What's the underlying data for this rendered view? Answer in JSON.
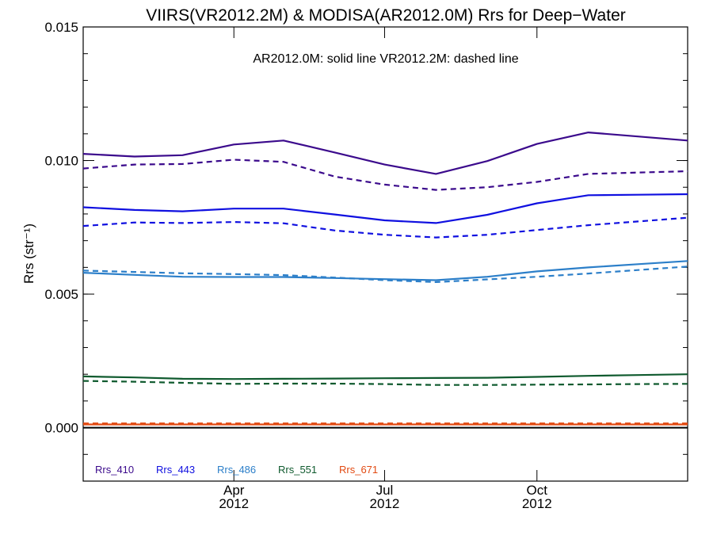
{
  "chart_data": {
    "type": "line",
    "title": "VIIRS(VR2012.2M) & MODISA(AR2012.0M)  Rrs for Deep−Water",
    "annotation": "AR2012.0M: solid line   VR2012.2M: dashed line",
    "ylabel": "Rrs (str⁻¹)",
    "ylim": [
      -0.002,
      0.015
    ],
    "xlim": [
      "2012-01-01",
      "2012-12-31"
    ],
    "yticks": [
      0.0,
      0.005,
      0.01,
      0.015
    ],
    "ytick_labels": [
      "0.000",
      "0.005",
      "0.010",
      "0.015"
    ],
    "xticks": [
      "2012-04-01",
      "2012-07-01",
      "2012-10-01"
    ],
    "xtick_labels": [
      [
        "Apr",
        "2012"
      ],
      [
        "Jul",
        "2012"
      ],
      [
        "Oct",
        "2012"
      ]
    ],
    "grid": false,
    "legend_position": "bottom-left",
    "x": [
      "2012-01-01",
      "2012-02-01",
      "2012-03-01",
      "2012-04-01",
      "2012-05-01",
      "2012-06-01",
      "2012-07-01",
      "2012-08-01",
      "2012-09-01",
      "2012-10-01",
      "2012-11-01",
      "2012-12-01",
      "2012-12-31"
    ],
    "series": [
      {
        "name": "Rrs_410",
        "color": "#3b0a8c",
        "style": "solid",
        "values": [
          0.01025,
          0.01015,
          0.0102,
          0.0106,
          0.01075,
          0.0103,
          0.00985,
          0.0095,
          0.00998,
          0.01062,
          0.01105,
          0.0109,
          null
        ]
      },
      {
        "name": "Rrs_410",
        "color": "#3b0a8c",
        "style": "dashed",
        "values": [
          0.0097,
          0.00985,
          0.00987,
          0.01003,
          0.00995,
          0.0094,
          0.0091,
          0.0089,
          0.009,
          0.0092,
          0.0095,
          0.00955,
          null
        ]
      },
      {
        "name": "Rrs_443",
        "color": "#1010e0",
        "style": "solid",
        "values": [
          0.00825,
          0.00815,
          0.0081,
          0.0082,
          0.0082,
          0.00798,
          0.00776,
          0.00766,
          0.00797,
          0.0084,
          0.0087,
          0.00872,
          null
        ]
      },
      {
        "name": "Rrs_443",
        "color": "#1010e0",
        "style": "dashed",
        "values": [
          0.00755,
          0.00768,
          0.00766,
          0.0077,
          0.00765,
          0.00738,
          0.00722,
          0.00712,
          0.00722,
          0.0074,
          0.00758,
          0.00772,
          null
        ]
      },
      {
        "name": "Rrs_486",
        "color": "#2c7fc9",
        "style": "solid",
        "values": [
          0.0058,
          0.00572,
          0.00565,
          0.00564,
          0.00564,
          0.0056,
          0.00556,
          0.00552,
          0.00565,
          0.00585,
          0.006,
          0.00612,
          null
        ]
      },
      {
        "name": "Rrs_486",
        "color": "#2c7fc9",
        "style": "dashed",
        "values": [
          0.00588,
          0.00583,
          0.00578,
          0.00575,
          0.00571,
          0.00562,
          0.00552,
          0.00545,
          0.00555,
          0.00565,
          0.00577,
          0.0059,
          null
        ]
      },
      {
        "name": "Rrs_551",
        "color": "#0f5a2e",
        "style": "solid",
        "values": [
          0.00192,
          0.00188,
          0.00183,
          0.00182,
          0.00183,
          0.00184,
          0.00185,
          0.00186,
          0.00187,
          0.0019,
          0.00194,
          0.00197,
          null
        ]
      },
      {
        "name": "Rrs_551",
        "color": "#0f5a2e",
        "style": "dashed",
        "values": [
          0.00175,
          0.00172,
          0.00168,
          0.00164,
          0.00165,
          0.00165,
          0.00163,
          0.0016,
          0.0016,
          0.00161,
          0.00162,
          0.00163,
          null
        ]
      },
      {
        "name": "Rrs_671",
        "color": "#e24a12",
        "style": "solid",
        "values": [
          0.00012,
          0.00012,
          0.00012,
          0.00012,
          0.00012,
          0.00012,
          0.00012,
          0.00012,
          0.00012,
          0.00012,
          0.00012,
          0.00012,
          null
        ]
      },
      {
        "name": "Rrs_671",
        "color": "#e24a12",
        "style": "dashed",
        "values": [
          0.00016,
          0.00016,
          0.00016,
          0.00016,
          0.00016,
          0.00016,
          0.00016,
          0.00016,
          0.00016,
          0.00016,
          0.00016,
          0.00016,
          null
        ]
      }
    ],
    "reference_line": {
      "y": 0.0,
      "color": "#000000"
    },
    "legend": [
      {
        "label": "Rrs_410",
        "color": "#3b0a8c"
      },
      {
        "label": "Rrs_443",
        "color": "#1010e0"
      },
      {
        "label": "Rrs_486",
        "color": "#2c7fc9"
      },
      {
        "label": "Rrs_551",
        "color": "#0f5a2e"
      },
      {
        "label": "Rrs_671",
        "color": "#e24a12"
      }
    ]
  }
}
